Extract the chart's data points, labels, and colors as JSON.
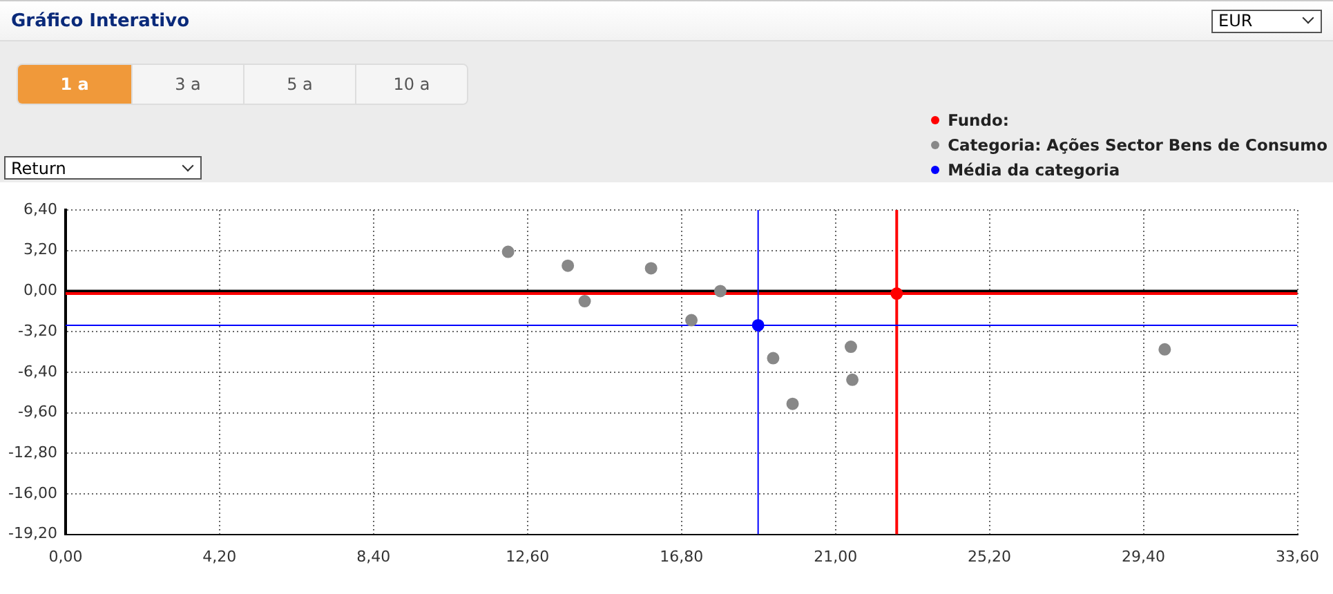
{
  "chart_data": {
    "type": "scatter",
    "title": "Gráfico Interativo",
    "annotations": [
      "EUR",
      "1 a",
      "3 a",
      "5 a",
      "10 a",
      "Return"
    ],
    "series": [
      {
        "name": "Fundo:",
        "color": "#ff0000",
        "x": [
          22.67
        ],
        "values": [
          -0.2
        ]
      },
      {
        "name": "Categoria: Ações Sector Bens de Consumo",
        "color": "#888888",
        "x": [
          12.07,
          13.7,
          14.16,
          15.97,
          17.07,
          17.86,
          19.3,
          19.83,
          21.42,
          21.46,
          29.98
        ],
        "values": [
          3.1,
          2.0,
          -0.8,
          1.8,
          -2.3,
          0.0,
          -5.3,
          -8.9,
          -4.4,
          -7.0,
          -4.6
        ]
      },
      {
        "name": "Média da categoria",
        "color": "#0000ff",
        "x": [
          18.89
        ],
        "values": [
          -2.7
        ]
      }
    ],
    "xlim": [
      0,
      33.6
    ],
    "xticks": [
      {
        "value": 0,
        "label": "0,00"
      },
      {
        "value": 4.2,
        "label": "4,20"
      },
      {
        "value": 8.4,
        "label": "8,40"
      },
      {
        "value": 12.6,
        "label": "12,60"
      },
      {
        "value": 16.8,
        "label": "16,80"
      },
      {
        "value": 21,
        "label": "21,00"
      },
      {
        "value": 25.2,
        "label": "25,20"
      },
      {
        "value": 29.4,
        "label": "29,40"
      },
      {
        "value": 33.6,
        "label": "33,60"
      }
    ],
    "ylim": [
      -19.2,
      6.4
    ],
    "yticks": [
      {
        "value": -19.2,
        "label": "-19,20"
      },
      {
        "value": -16,
        "label": "-16,00"
      },
      {
        "value": -12.8,
        "label": "-12,80"
      },
      {
        "value": -9.6,
        "label": "-9,60"
      },
      {
        "value": -6.4,
        "label": "-6,40"
      },
      {
        "value": -3.2,
        "label": "-3,20"
      },
      {
        "value": 0,
        "label": "0,00"
      },
      {
        "value": 3.2,
        "label": "3,20"
      },
      {
        "value": 6.4,
        "label": "6,40"
      }
    ],
    "ref_lines": [
      {
        "axis": "y",
        "value": 0,
        "color": "#000000"
      },
      {
        "axis": "y",
        "value": -0.2,
        "color": "#ff0000"
      },
      {
        "axis": "x",
        "value": 22.67,
        "color": "#ff0000"
      },
      {
        "axis": "y",
        "value": -2.7,
        "color": "#0000ff"
      },
      {
        "axis": "x",
        "value": 18.89,
        "color": "#0000ff"
      }
    ],
    "grid": true,
    "legend": "top right",
    "marker": "circle"
  }
}
